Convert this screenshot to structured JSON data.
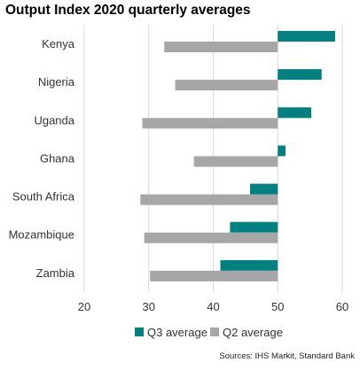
{
  "chart_data": {
    "type": "bar",
    "orientation": "horizontal",
    "title": "Output Index 2020 quarterly averages",
    "categories": [
      "Kenya",
      "Nigeria",
      "Uganda",
      "Ghana",
      "South Africa",
      "Mozambique",
      "Zambia"
    ],
    "series": [
      {
        "name": "Q3 average",
        "color": "#008080",
        "values": [
          58.9,
          56.8,
          55.2,
          51.2,
          45.7,
          42.6,
          41.1
        ]
      },
      {
        "name": "Q2 average",
        "color": "#a6a6a6",
        "values": [
          32.4,
          34.1,
          29.0,
          37.0,
          28.7,
          29.3,
          30.2
        ]
      }
    ],
    "baseline": 50,
    "xlim": [
      20,
      60
    ],
    "xticks": [
      20,
      30,
      40,
      50,
      60
    ],
    "grid": true,
    "legend_position": "bottom",
    "source": "Sources: IHS Markit, Standard Bank"
  }
}
